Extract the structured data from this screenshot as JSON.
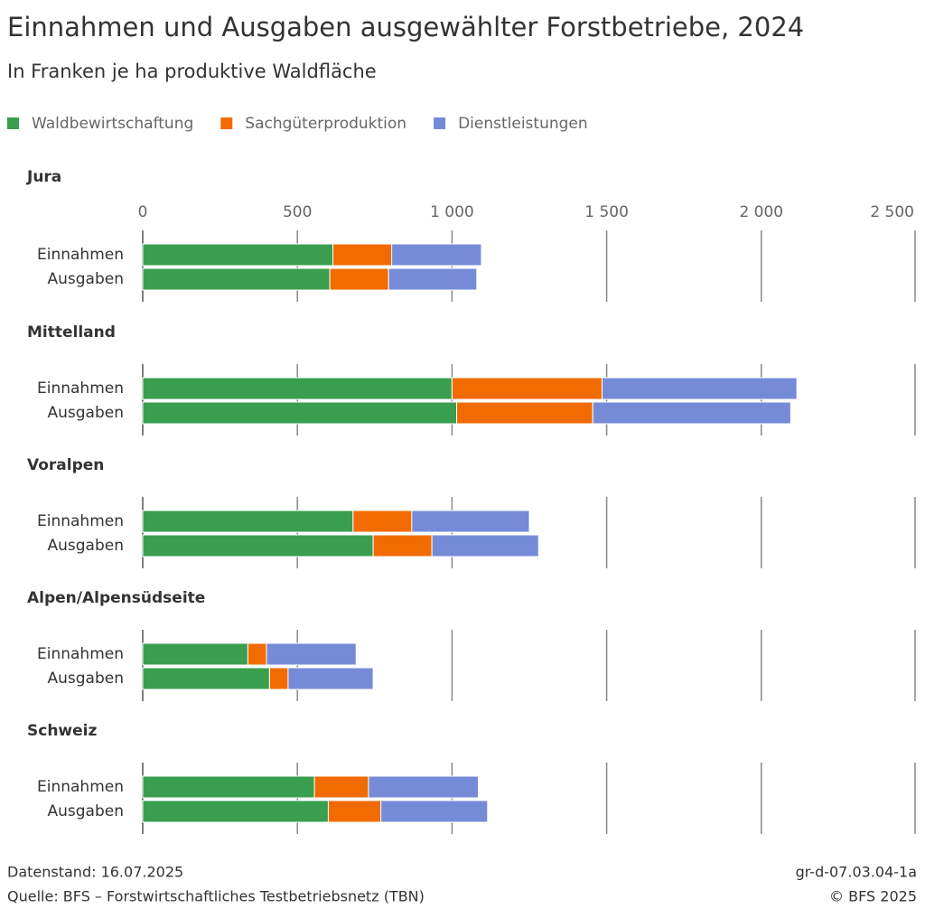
{
  "chart_data": {
    "type": "bar",
    "orientation": "horizontal",
    "stacked": true,
    "title": "Einnahmen und Ausgaben ausgewählter Forstbetriebe, 2024",
    "subtitle": "In Franken je ha produktive Waldfläche",
    "xlim": [
      0,
      2500
    ],
    "xticks": [
      0,
      500,
      {
        "value": 1000,
        "label": "1 000"
      },
      {
        "value": 1500,
        "label": "1 500"
      },
      {
        "value": 2000,
        "label": "2 000"
      },
      {
        "value": 2500,
        "label": "2 500"
      }
    ],
    "grid": true,
    "legend": "top",
    "series": [
      {
        "name": "Waldbewirtschaftung",
        "color": "#3a9e4f"
      },
      {
        "name": "Sachgüterproduktion",
        "color": "#f26b00"
      },
      {
        "name": "Dienstleistungen",
        "color": "#768bd8"
      }
    ],
    "panels": [
      {
        "title": "Jura",
        "categories": [
          "Einnahmen",
          "Ausgaben"
        ],
        "values": [
          [
            615,
            605
          ],
          [
            190,
            190
          ],
          [
            290,
            285
          ]
        ]
      },
      {
        "title": "Mittelland",
        "categories": [
          "Einnahmen",
          "Ausgaben"
        ],
        "values": [
          [
            1000,
            1015
          ],
          [
            485,
            440
          ],
          [
            630,
            640
          ]
        ]
      },
      {
        "title": "Voralpen",
        "categories": [
          "Einnahmen",
          "Ausgaben"
        ],
        "values": [
          [
            680,
            745
          ],
          [
            190,
            190
          ],
          [
            380,
            345
          ]
        ]
      },
      {
        "title": "Alpen/Alpensüdseite",
        "categories": [
          "Einnahmen",
          "Ausgaben"
        ],
        "values": [
          [
            340,
            410
          ],
          [
            60,
            60
          ],
          [
            290,
            275
          ]
        ]
      },
      {
        "title": "Schweiz",
        "categories": [
          "Einnahmen",
          "Ausgaben"
        ],
        "values": [
          [
            555,
            600
          ],
          [
            175,
            170
          ],
          [
            355,
            345
          ]
        ]
      }
    ]
  },
  "footer": {
    "left": [
      "Datenstand: 16.07.2025",
      "Quelle: BFS – Forstwirtschaftliches Testbetriebsnetz (TBN)"
    ],
    "right": [
      "gr-d-07.03.04-1a",
      "© BFS 2025"
    ]
  }
}
